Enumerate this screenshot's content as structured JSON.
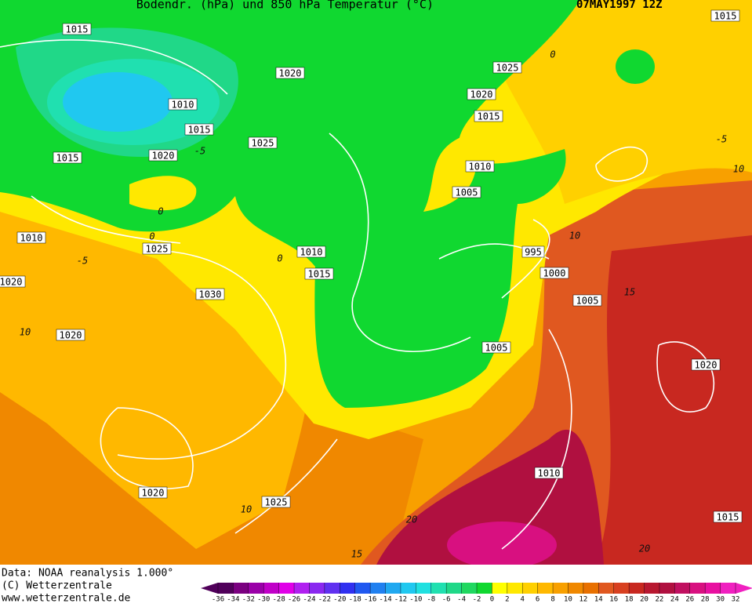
{
  "header": {
    "title": "Bodendr. (hPa) und 850 hPa Temperatur (°C)",
    "date": "07MAY1997 12Z"
  },
  "isobar_labels": [
    1015,
    1015,
    1020,
    1025,
    1010,
    1020,
    1015,
    1015,
    1025,
    1015,
    1020,
    1010,
    1005,
    1010,
    1025,
    1010,
    995,
    1015,
    1000,
    1020,
    1030,
    1005,
    1020,
    1005,
    1020,
    1010,
    1020,
    1025,
    1015
  ],
  "temperature_labels": [
    0,
    -5,
    0,
    0,
    -5,
    0,
    10,
    -5,
    10,
    15,
    10,
    10,
    20,
    15,
    20
  ],
  "footer": {
    "source": "Data: NOAA reanalysis 1.000°",
    "copyright": "(C) Wetterzentrale",
    "url": "www.wetterzentrale.de"
  },
  "colorbar": {
    "ticks": [
      -36,
      -34,
      -32,
      -30,
      -28,
      -26,
      -24,
      -22,
      -20,
      -18,
      -16,
      -14,
      -12,
      -10,
      -8,
      -6,
      -4,
      -2,
      0,
      2,
      4,
      6,
      8,
      10,
      12,
      14,
      16,
      18,
      20,
      22,
      24,
      26,
      28,
      30,
      32
    ],
    "colors": [
      "#50005a",
      "#7a0080",
      "#9a00a8",
      "#c000c8",
      "#e000e8",
      "#b020f0",
      "#8a28f0",
      "#6030f0",
      "#3030f0",
      "#2058f0",
      "#2080f0",
      "#20a8f0",
      "#20c8f0",
      "#20e0e0",
      "#20e0b0",
      "#20d888",
      "#20d860",
      "#10d830",
      "#ffff00",
      "#ffe800",
      "#ffd000",
      "#ffb800",
      "#f8a000",
      "#f08800",
      "#e87000",
      "#e05820",
      "#d84020",
      "#c82820",
      "#b81830",
      "#b01040",
      "#c01060",
      "#d81080",
      "#e810a0",
      "#f020c0"
    ]
  }
}
